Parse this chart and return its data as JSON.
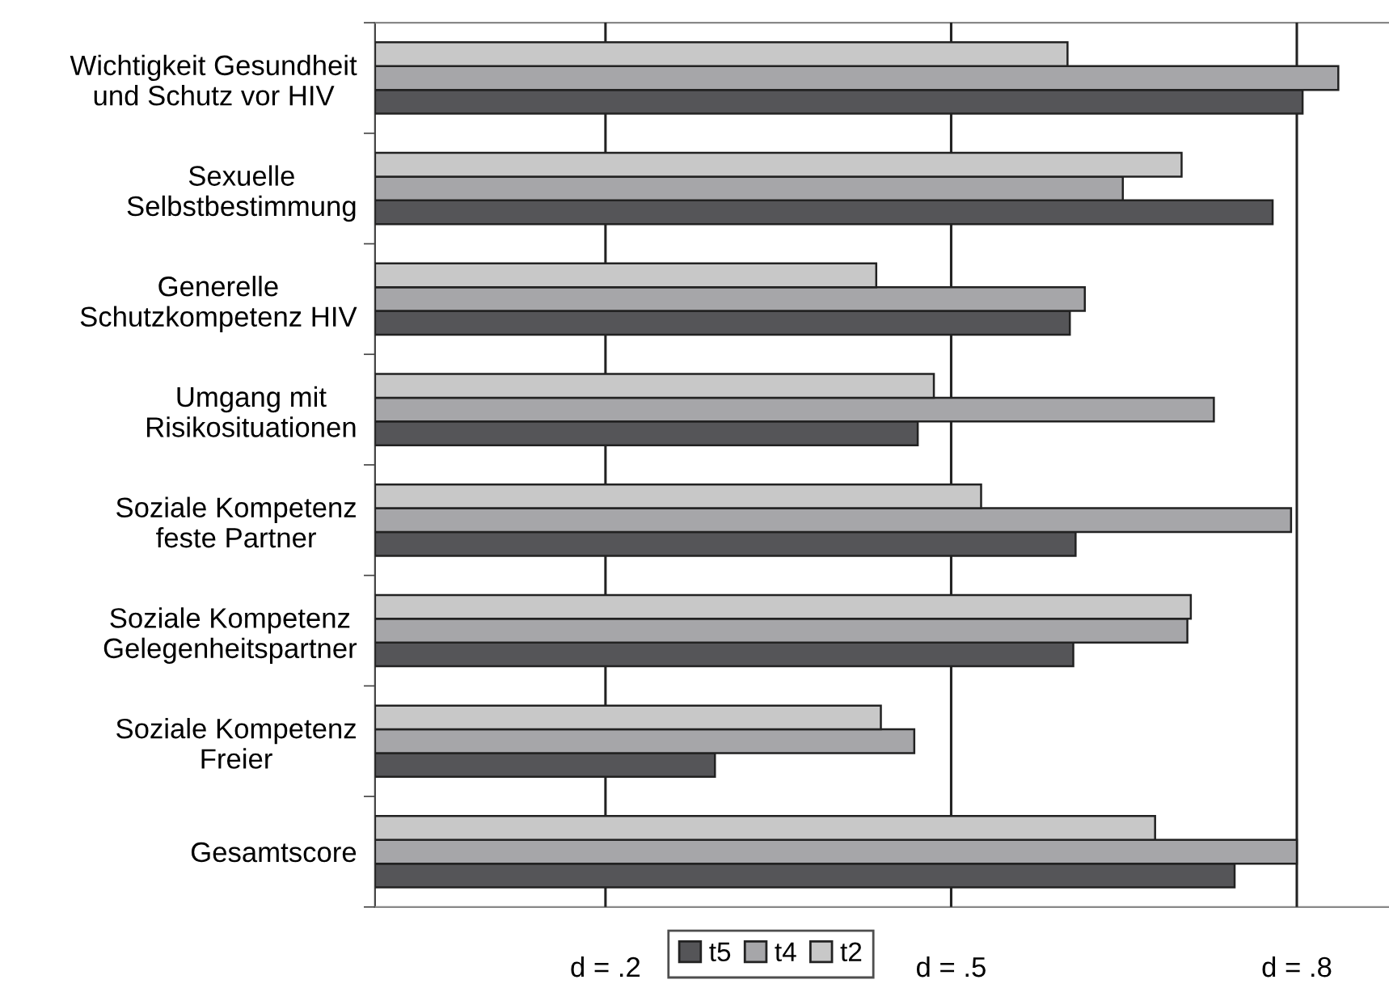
{
  "chart_data": {
    "type": "bar",
    "orientation": "horizontal",
    "categories": [
      "Wichtigkeit Gesundheit\nund Schutz vor HIV",
      "Sexuelle\nSelbstbestimmung",
      "Generelle\nSchutzkompetenz HIV",
      "Umgang mit\nRisikosituationen",
      "Soziale Kompetenz\nfeste Partner",
      "Soziale Kompetenz\nGelegenheitspartner",
      "Soziale Kompetenz\nFreier",
      "Gesamtscore"
    ],
    "series": [
      {
        "name": "t5",
        "color": "#555558",
        "values": [
          0.805,
          0.779,
          0.603,
          0.471,
          0.608,
          0.606,
          0.295,
          0.746
        ]
      },
      {
        "name": "t4",
        "color": "#a6a6a9",
        "values": [
          0.836,
          0.649,
          0.616,
          0.728,
          0.795,
          0.705,
          0.468,
          0.8
        ]
      },
      {
        "name": "t2",
        "color": "#c8c8c8",
        "values": [
          0.601,
          0.7,
          0.435,
          0.485,
          0.526,
          0.708,
          0.439,
          0.677
        ]
      }
    ],
    "xlim": [
      0,
      0.88
    ],
    "xticks": [
      {
        "value": 0.2,
        "label": "d = .2"
      },
      {
        "value": 0.5,
        "label": "d = .5"
      },
      {
        "value": 0.8,
        "label": "d = .8"
      }
    ],
    "grid": "x",
    "legend": "bottom"
  }
}
